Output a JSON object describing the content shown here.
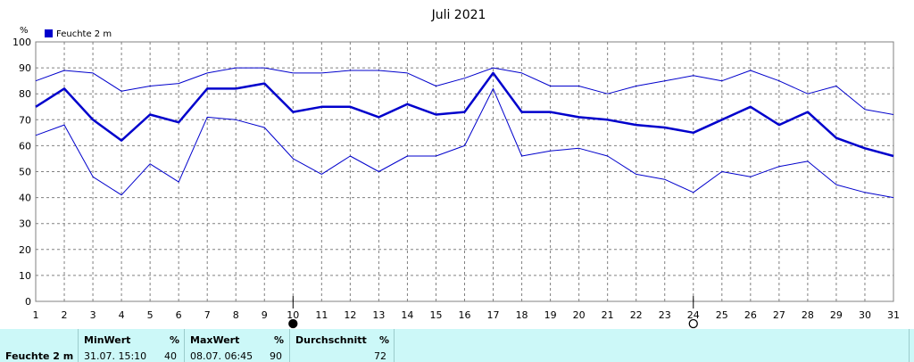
{
  "chart_data": {
    "type": "line",
    "title": "Juli 2021",
    "ylabel": "%",
    "legend": "Feuchte  2 m",
    "legend_color": "#0000cc",
    "line_color": "#0000cc",
    "grid": true,
    "ylim": [
      0,
      100
    ],
    "yticks": [
      "0",
      "10",
      "20",
      "30",
      "40",
      "50",
      "60",
      "70",
      "80",
      "90",
      "100"
    ],
    "x": [
      "1",
      "2",
      "3",
      "4",
      "5",
      "6",
      "7",
      "8",
      "9",
      "10",
      "11",
      "12",
      "13",
      "14",
      "15",
      "16",
      "17",
      "18",
      "19",
      "20",
      "21",
      "22",
      "23",
      "24",
      "25",
      "26",
      "27",
      "28",
      "29",
      "30",
      "31"
    ],
    "series": [
      {
        "role": "mean",
        "values": [
          75,
          82,
          70,
          62,
          72,
          69,
          82,
          82,
          84,
          73,
          75,
          75,
          71,
          76,
          72,
          73,
          88,
          73,
          73,
          71,
          70,
          68,
          67,
          65,
          70,
          75,
          68,
          73,
          63,
          59,
          56
        ]
      },
      {
        "role": "max",
        "values": [
          85,
          89,
          88,
          81,
          83,
          84,
          88,
          90,
          90,
          88,
          88,
          89,
          89,
          88,
          83,
          86,
          90,
          88,
          83,
          83,
          80,
          83,
          85,
          87,
          85,
          89,
          85,
          80,
          83,
          74,
          72
        ]
      },
      {
        "role": "min",
        "values": [
          64,
          68,
          48,
          41,
          53,
          46,
          71,
          70,
          67,
          55,
          49,
          56,
          50,
          56,
          56,
          60,
          82,
          56,
          58,
          59,
          56,
          49,
          47,
          42,
          50,
          48,
          52,
          54,
          45,
          42,
          40
        ]
      }
    ],
    "markers": [
      {
        "day": "10",
        "symbol": "new-moon-icon"
      },
      {
        "day": "24",
        "symbol": "full-moon-icon"
      }
    ]
  },
  "stats": {
    "row_label": "Feuchte  2 m",
    "min_label": "MinWert",
    "min_unit": "%",
    "min_time": "31.07.  15:10",
    "min_value": "40",
    "max_label": "MaxWert",
    "max_unit": "%",
    "max_time": "08.07.  06:45",
    "max_value": "90",
    "avg_label": "Durchschnitt",
    "avg_unit": "%",
    "avg_value": "72"
  }
}
